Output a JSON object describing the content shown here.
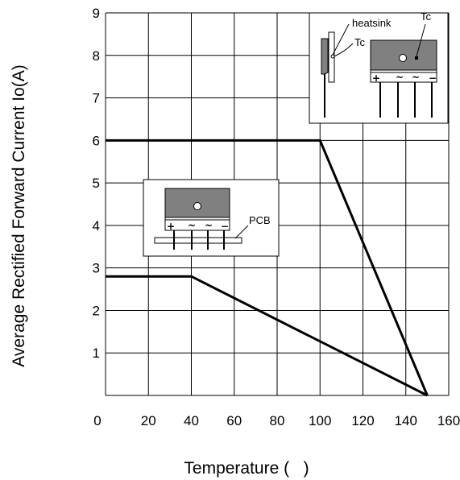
{
  "chart_data": {
    "type": "line",
    "xlabel": "Temperature (   )",
    "ylabel": "Average Rectified Forward Current Io(A)",
    "xlim": [
      0,
      160
    ],
    "ylim": [
      0,
      9
    ],
    "x_ticks": [
      "0",
      "20",
      "40",
      "60",
      "80",
      "100",
      "120",
      "140",
      "160"
    ],
    "y_ticks": [
      "0",
      "1",
      "2",
      "3",
      "4",
      "5",
      "6",
      "7",
      "8",
      "9"
    ],
    "grid": true,
    "series": [
      {
        "x": [
          0,
          100,
          150
        ],
        "y": [
          6.0,
          6.0,
          0
        ]
      },
      {
        "x": [
          0,
          40,
          150
        ],
        "y": [
          2.8,
          2.8,
          0
        ]
      }
    ]
  },
  "insets": {
    "heatsink": {
      "heatsink_label": "heatsink",
      "tc_label_1": "Tc",
      "tc_label_2": "Tc",
      "pins": [
        "+",
        "~",
        "~",
        "−"
      ]
    },
    "pcb": {
      "pcb_label": "PCB",
      "pins": [
        "+",
        "~",
        "~",
        "−"
      ]
    }
  },
  "colors": {
    "line": "#000000",
    "grid": "#000000",
    "device_body": "#808080"
  }
}
